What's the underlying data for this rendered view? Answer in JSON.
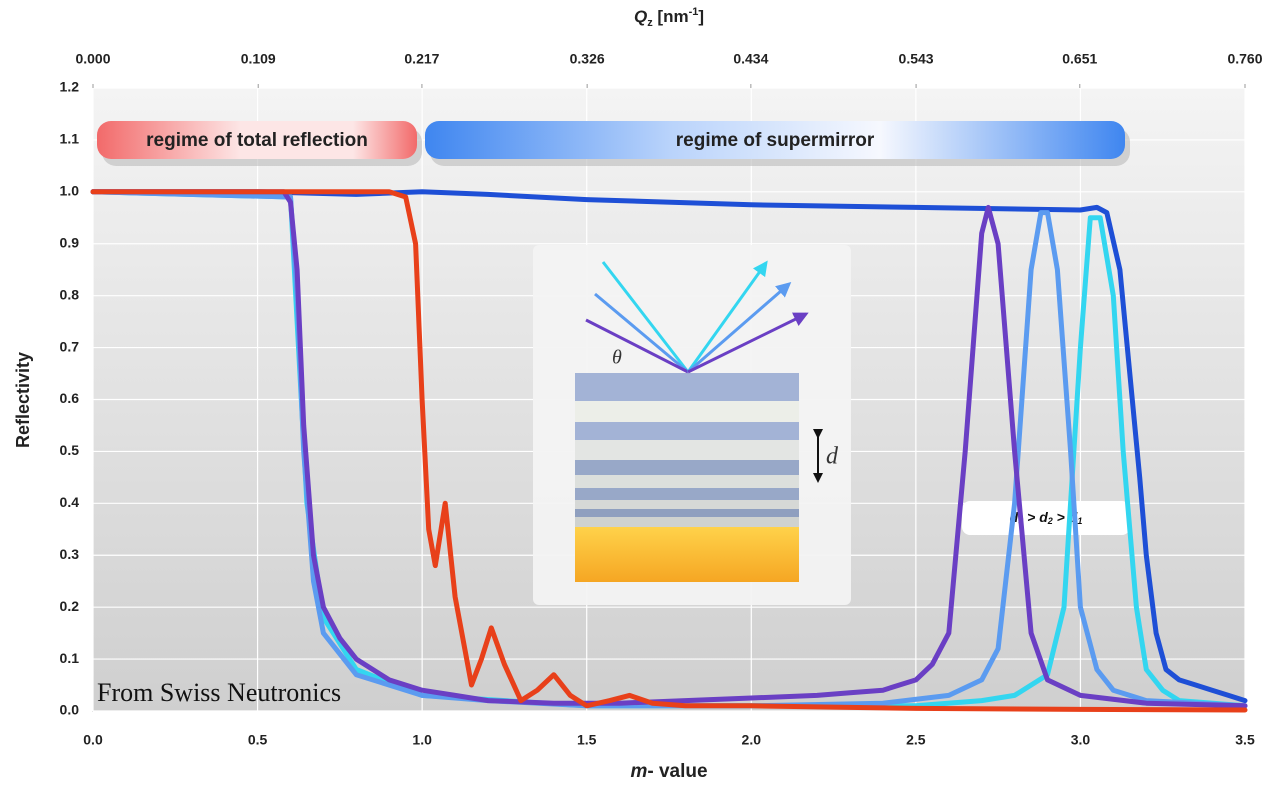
{
  "chart_data": {
    "type": "line",
    "xlabel": [
      "m",
      "- value"
    ],
    "ylabel": "Reflectivity",
    "x2label": [
      "Q",
      "z",
      " [nm",
      "-1",
      "]"
    ],
    "xlim": [
      0,
      3.5
    ],
    "xticks": [
      {
        "value": 0,
        "label": "0.0"
      },
      {
        "value": 0.5,
        "label": "0.5"
      },
      {
        "value": 1,
        "label": "1.0"
      },
      {
        "value": 1.5,
        "label": "1.5"
      },
      {
        "value": 2,
        "label": "2.0"
      },
      {
        "value": 2.5,
        "label": "2.5"
      },
      {
        "value": 3,
        "label": "3.0"
      },
      {
        "value": 3.5,
        "label": "3.5"
      }
    ],
    "x2lim": [
      0,
      0.76
    ],
    "x2ticks": [
      {
        "value": 0,
        "label": "0.000"
      },
      0.109,
      0.217,
      0.326,
      0.434,
      0.543,
      0.651,
      {
        "value": 0.76,
        "label": "0.760"
      }
    ],
    "ylim": [
      0,
      1.2
    ],
    "yticks": [
      {
        "value": 0,
        "label": "0.0"
      },
      {
        "value": 0.1,
        "label": "0.1"
      },
      {
        "value": 0.2,
        "label": "0.2"
      },
      {
        "value": 0.3,
        "label": "0.3"
      },
      {
        "value": 0.4,
        "label": "0.4"
      },
      {
        "value": 0.5,
        "label": "0.5"
      },
      {
        "value": 0.6,
        "label": "0.6"
      },
      {
        "value": 0.7,
        "label": "0.7"
      },
      {
        "value": 0.8,
        "label": "0.8"
      },
      {
        "value": 0.9,
        "label": "0.9"
      },
      {
        "value": 1,
        "label": "1.0"
      },
      {
        "value": 1.1,
        "label": "1.1"
      },
      {
        "value": 1.2,
        "label": "1.2"
      }
    ],
    "grid": true,
    "series": [
      {
        "color": "#1e4fd6",
        "x": [
          0,
          0.5,
          0.8,
          1.0,
          1.2,
          1.5,
          2.0,
          2.5,
          3.0,
          3.05,
          3.08,
          3.12,
          3.15,
          3.18,
          3.2,
          3.23,
          3.26,
          3.3,
          3.35,
          3.4,
          3.45,
          3.5
        ],
        "values": [
          1,
          1,
          0.995,
          1.0,
          0.995,
          0.985,
          0.975,
          0.97,
          0.965,
          0.97,
          0.96,
          0.85,
          0.65,
          0.45,
          0.3,
          0.15,
          0.08,
          0.06,
          0.05,
          0.04,
          0.03,
          0.02
        ]
      },
      {
        "color": "#33d6f0",
        "x": [
          0,
          0.6,
          0.62,
          0.65,
          0.7,
          0.8,
          1.0,
          1.5,
          2.0,
          2.5,
          2.7,
          2.8,
          2.9,
          2.95,
          3.0,
          3.03,
          3.06,
          3.1,
          3.13,
          3.17,
          3.2,
          3.25,
          3.3,
          3.5
        ],
        "values": [
          1,
          0.99,
          0.75,
          0.4,
          0.18,
          0.08,
          0.03,
          0.01,
          0.01,
          0.01,
          0.02,
          0.03,
          0.07,
          0.2,
          0.7,
          0.95,
          0.95,
          0.8,
          0.5,
          0.2,
          0.08,
          0.04,
          0.02,
          0.01
        ]
      },
      {
        "color": "#5b9bf0",
        "x": [
          0,
          0.6,
          0.62,
          0.64,
          0.67,
          0.7,
          0.8,
          1.0,
          1.2,
          1.5,
          2.0,
          2.4,
          2.6,
          2.7,
          2.75,
          2.8,
          2.85,
          2.88,
          2.9,
          2.93,
          2.97,
          3.0,
          3.05,
          3.1,
          3.2,
          3.5
        ],
        "values": [
          1,
          0.99,
          0.8,
          0.5,
          0.25,
          0.15,
          0.07,
          0.03,
          0.02,
          0.01,
          0.01,
          0.015,
          0.03,
          0.06,
          0.12,
          0.4,
          0.85,
          0.96,
          0.96,
          0.85,
          0.5,
          0.2,
          0.08,
          0.04,
          0.02,
          0.01
        ]
      },
      {
        "color": "#6a3fc4",
        "x": [
          0,
          0.58,
          0.6,
          0.62,
          0.64,
          0.67,
          0.7,
          0.75,
          0.8,
          0.9,
          1.0,
          1.1,
          1.2,
          1.4,
          1.6,
          1.8,
          2.0,
          2.2,
          2.3,
          2.4,
          2.5,
          2.55,
          2.6,
          2.65,
          2.7,
          2.72,
          2.75,
          2.8,
          2.85,
          2.9,
          3.0,
          3.2,
          3.5
        ],
        "values": [
          1,
          1,
          0.98,
          0.85,
          0.55,
          0.3,
          0.2,
          0.14,
          0.1,
          0.06,
          0.04,
          0.03,
          0.02,
          0.015,
          0.015,
          0.02,
          0.025,
          0.03,
          0.035,
          0.04,
          0.06,
          0.09,
          0.15,
          0.5,
          0.92,
          0.97,
          0.9,
          0.5,
          0.15,
          0.06,
          0.03,
          0.015,
          0.01
        ]
      },
      {
        "color": "#e8401a",
        "x": [
          0,
          0.9,
          0.95,
          0.98,
          1.0,
          1.02,
          1.04,
          1.07,
          1.1,
          1.15,
          1.18,
          1.21,
          1.25,
          1.3,
          1.35,
          1.4,
          1.45,
          1.5,
          1.57,
          1.63,
          1.7,
          1.8,
          2.0,
          2.5,
          3.0,
          3.5
        ],
        "values": [
          1,
          1,
          0.99,
          0.9,
          0.6,
          0.35,
          0.28,
          0.4,
          0.22,
          0.05,
          0.1,
          0.16,
          0.09,
          0.02,
          0.04,
          0.07,
          0.03,
          0.01,
          0.02,
          0.03,
          0.015,
          0.01,
          0.01,
          0.005,
          0.003,
          0.002
        ]
      }
    ],
    "annotations": {
      "regime_total": "regime of total reflection",
      "regime_supermirror": "regime of supermirror",
      "theta": "θ",
      "d": "d",
      "d_order": [
        "d",
        "3",
        " > ",
        "d",
        "2",
        " > ",
        "d",
        "1"
      ],
      "credit": "From Swiss Neutronics"
    }
  }
}
